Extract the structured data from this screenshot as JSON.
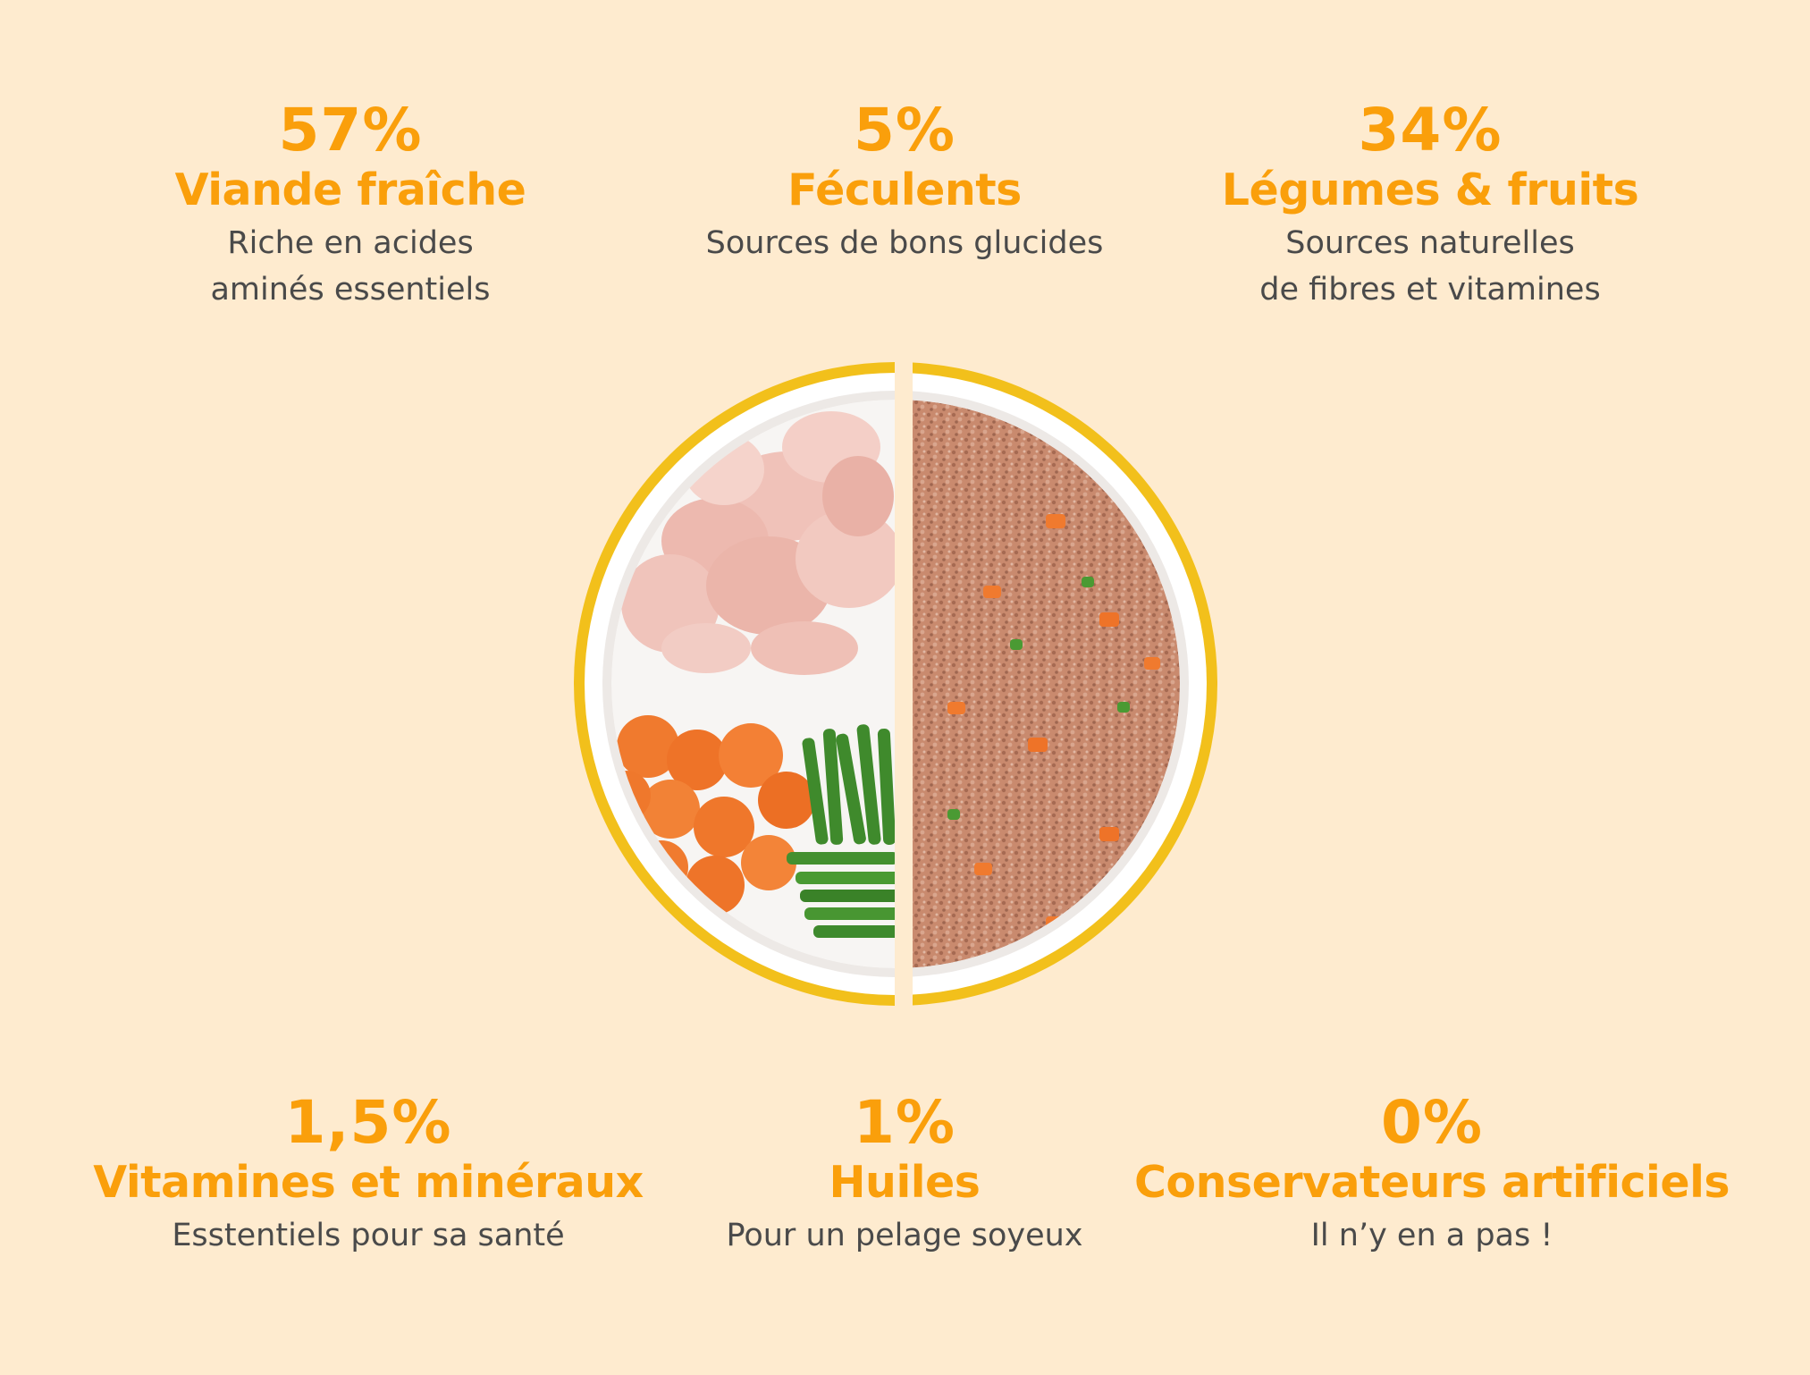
{
  "stats": [
    {
      "percent": "57%",
      "title": "Viande fraîche",
      "description": "Riche en acides\naminés essentiels"
    },
    {
      "percent": "5%",
      "title": "Féculents",
      "description": "Sources de bons glucides"
    },
    {
      "percent": "34%",
      "title": "Légumes & fruits",
      "description": "Sources naturelles\nde fibres et vitamines"
    },
    {
      "percent": "1,5%",
      "title": "Vitamines et minéraux",
      "description": "Esstentiels pour sa santé"
    },
    {
      "percent": "1%",
      "title": "Huiles",
      "description": "Pour un pelage soyeux"
    },
    {
      "percent": "0%",
      "title": "Conservateurs artificiels",
      "description": "Il n’y en a pas !"
    }
  ],
  "colors": {
    "background": "#FEEBCF",
    "accent": "#FA9F0B",
    "text": "#4A4A4A",
    "plate_rim": "#F2C01B"
  },
  "image": {
    "name": "dog-food-bowl-image",
    "left_half": "raw ingredients: chicken, carrots, green beans",
    "right_half": "cooked dog food mix"
  }
}
